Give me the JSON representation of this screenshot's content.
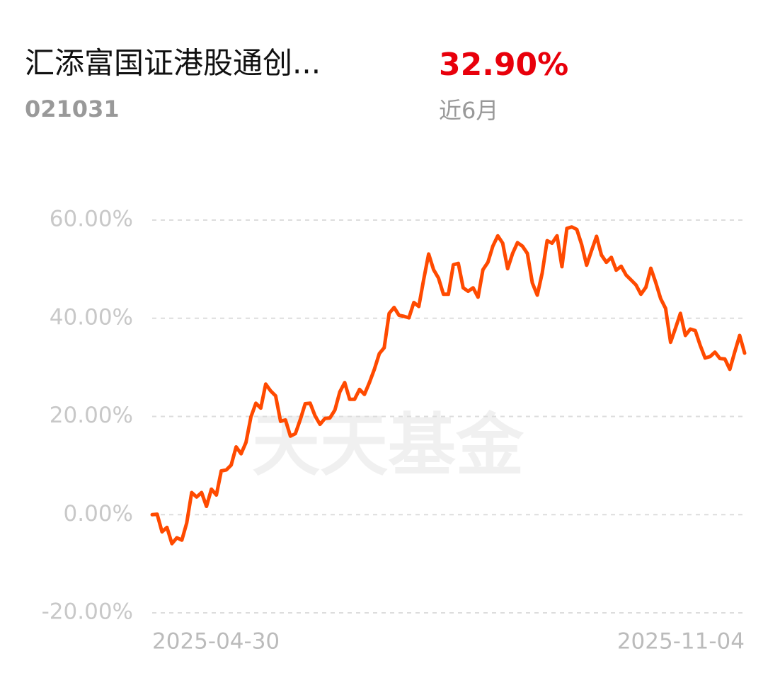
{
  "header": {
    "name": "汇添富国证港股通创...",
    "code": "021031",
    "return": "32.90%",
    "period": "近6月"
  },
  "chart_data": {
    "type": "line",
    "watermark": "天天基金",
    "categories": [
      "2025-04-30",
      null,
      null,
      null,
      null,
      null,
      null,
      null,
      null,
      null,
      null,
      null,
      null,
      null,
      null,
      null,
      null,
      null,
      null,
      null,
      null,
      null,
      null,
      null,
      null,
      null,
      null,
      null,
      null,
      null,
      null,
      null,
      null,
      null,
      null,
      null,
      null,
      null,
      null,
      null,
      null,
      null,
      null,
      null,
      null,
      null,
      null,
      null,
      null,
      null,
      null,
      null,
      null,
      null,
      null,
      null,
      null,
      null,
      null,
      null,
      null,
      null,
      null,
      null,
      null,
      null,
      null,
      null,
      null,
      null,
      null,
      null,
      null,
      null,
      null,
      null,
      null,
      null,
      null,
      null,
      null,
      null,
      null,
      null,
      null,
      null,
      null,
      null,
      null,
      null,
      null,
      null,
      null,
      null,
      null,
      null,
      null,
      null,
      null,
      null,
      null,
      null,
      null,
      null,
      null,
      null,
      null,
      null,
      null,
      null,
      null,
      null,
      null,
      null,
      null,
      null,
      null,
      null,
      null,
      null,
      "2025-11-04"
    ],
    "series": [
      {
        "color": "#ff4a00",
        "values": [
          0,
          0.1,
          -3.5,
          -2.6,
          -5.9,
          -4.7,
          -5.2,
          -1.7,
          4.5,
          3.6,
          4.5,
          1.7,
          5.2,
          4.0,
          8.9,
          9.1,
          10.1,
          13.8,
          12.4,
          14.7,
          19.9,
          22.7,
          21.7,
          26.6,
          25.2,
          24.2,
          19.0,
          19.3,
          16.0,
          16.5,
          19.4,
          22.6,
          22.7,
          20.1,
          18.4,
          19.6,
          19.7,
          21.3,
          25.0,
          26.9,
          23.5,
          23.5,
          25.5,
          24.5,
          26.9,
          29.6,
          32.8,
          34.0,
          41.0,
          42.2,
          40.6,
          40.4,
          40.1,
          43.2,
          42.4,
          47.9,
          53.1,
          49.9,
          48.2,
          44.9,
          44.9,
          50.9,
          51.2,
          46.2,
          45.5,
          46.2,
          44.3,
          49.9,
          51.4,
          54.7,
          56.8,
          55.3,
          50.1,
          53.2,
          55.4,
          54.7,
          53.2,
          47.2,
          44.7,
          49.2,
          55.8,
          55.3,
          56.8,
          50.5,
          58.3,
          58.6,
          58.1,
          55.0,
          50.8,
          53.8,
          56.7,
          52.9,
          51.4,
          52.4,
          49.8,
          50.6,
          48.8,
          47.8,
          46.8,
          44.9,
          46.3,
          50.2,
          47.3,
          44.0,
          42.0,
          35.1,
          38.0,
          41.0,
          36.5,
          37.8,
          37.5,
          34.5,
          31.9,
          32.2,
          33.1,
          31.8,
          31.7,
          29.6,
          33.1,
          36.5,
          32.9
        ]
      }
    ],
    "ylim": [
      -20,
      60
    ],
    "yticks": [
      {
        "value": -20,
        "label": "-20.00%"
      },
      {
        "value": 0,
        "label": "0.00%"
      },
      {
        "value": 20,
        "label": "20.00%"
      },
      {
        "value": 40,
        "label": "40.00%"
      },
      {
        "value": 60,
        "label": "60.00%"
      }
    ],
    "grid": true
  }
}
